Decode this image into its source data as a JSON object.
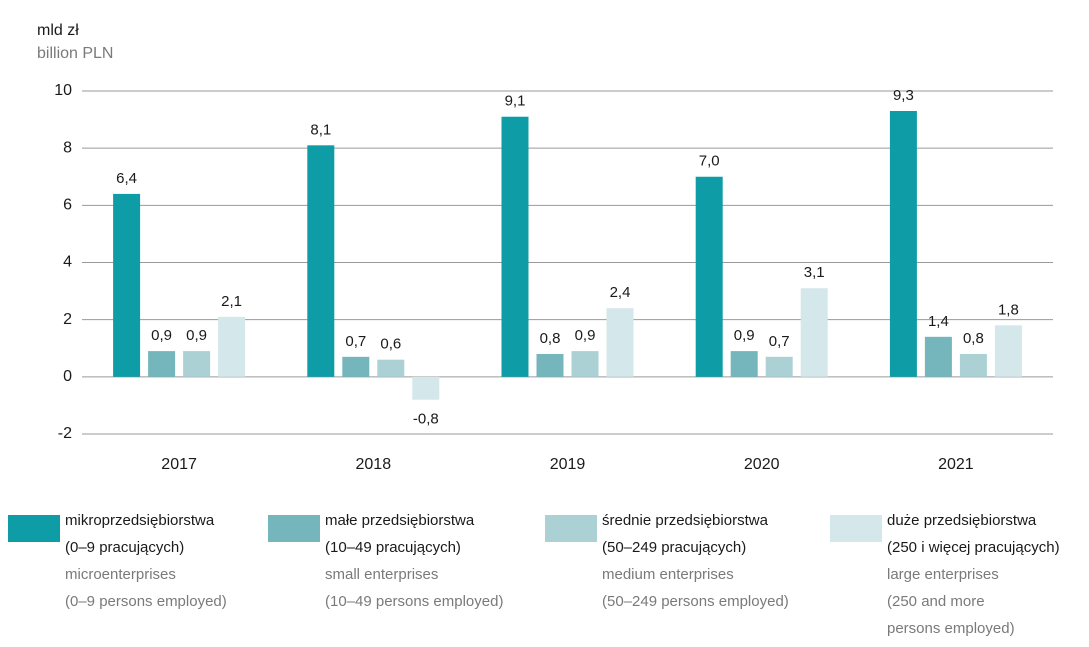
{
  "chart_data": {
    "type": "bar",
    "y_label": "mld zł",
    "y_label_en": "billion PLN",
    "categories": [
      "2017",
      "2018",
      "2019",
      "2020",
      "2021"
    ],
    "series": [
      {
        "name": [
          "mikroprzedsiębiorstwa",
          "(0–9 pracujących)"
        ],
        "name_en": [
          "microenterprises",
          "(0–9 persons employed)"
        ],
        "color": "#0e9ca6",
        "values": [
          6.4,
          8.1,
          9.1,
          7.0,
          9.3
        ],
        "value_labels": [
          "6,4",
          "8,1",
          "9,1",
          "7,0",
          "9,3"
        ]
      },
      {
        "name": [
          "małe przedsiębiorstwa",
          "(10–49 pracujących)"
        ],
        "name_en": [
          "small enterprises",
          "(10–49 persons employed)"
        ],
        "color": "#74b6bb",
        "values": [
          0.9,
          0.7,
          0.8,
          0.9,
          1.4
        ],
        "value_labels": [
          "0,9",
          "0,7",
          "0,8",
          "0,9",
          "1,4"
        ]
      },
      {
        "name": [
          "średnie przedsiębiorstwa",
          "(50–249 pracujących)"
        ],
        "name_en": [
          "medium enterprises",
          "(50–249 persons employed)"
        ],
        "color": "#abd1d5",
        "values": [
          0.9,
          0.6,
          0.9,
          0.7,
          0.8
        ],
        "value_labels": [
          "0,9",
          "0,6",
          "0,9",
          "0,7",
          "0,8"
        ]
      },
      {
        "name": [
          "duże przedsiębiorstwa",
          "(250 i więcej pracujących)"
        ],
        "name_en": [
          "large enterprises",
          "(250 and more",
          "persons employed)"
        ],
        "color": "#d4e7ea",
        "values": [
          2.1,
          -0.8,
          2.4,
          3.1,
          1.8
        ],
        "value_labels": [
          "2,1",
          "-0,8",
          "2,4",
          "3,1",
          "1,8"
        ]
      }
    ],
    "ylim": [
      -2,
      10
    ],
    "yticks": [
      -2,
      0,
      2,
      4,
      6,
      8,
      10
    ],
    "grid": true
  }
}
